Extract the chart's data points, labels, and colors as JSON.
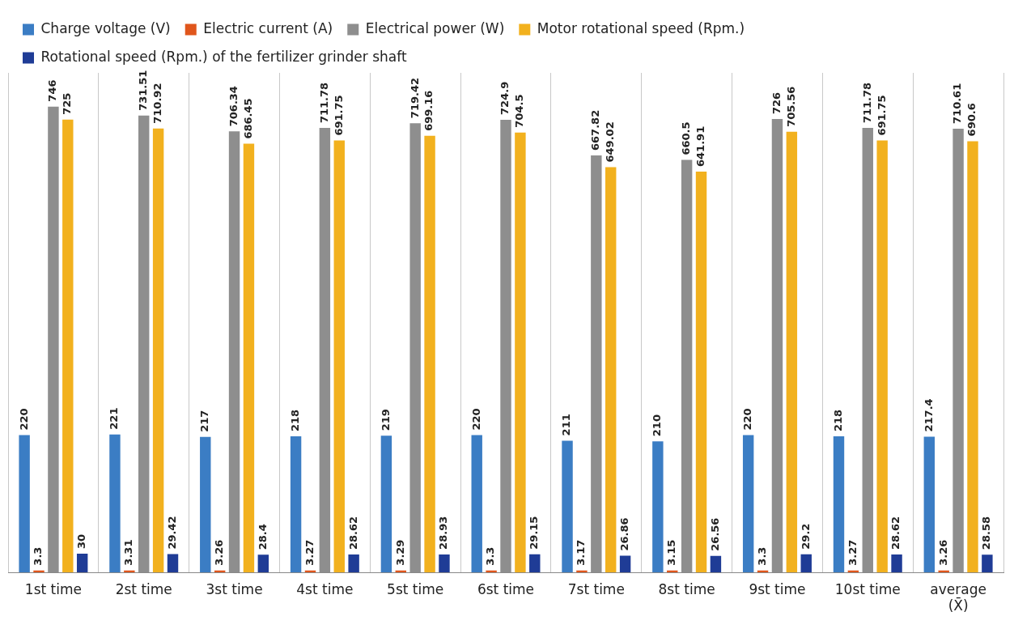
{
  "chart_data": {
    "type": "bar",
    "categories": [
      "1st time",
      "2st time",
      "3st time",
      "4st time",
      "5st time",
      "6st time",
      "7st time",
      "8st time",
      "9st time",
      "10st time",
      "average\n(X̄)"
    ],
    "series": [
      {
        "name": "Charge voltage (V)",
        "color": "#3b7dc4",
        "values": [
          220,
          221,
          217,
          218,
          219,
          220,
          211,
          210,
          220,
          218,
          217.4
        ]
      },
      {
        "name": "Electric current (A)",
        "color": "#e0561c",
        "values": [
          3.3,
          3.31,
          3.26,
          3.27,
          3.29,
          3.3,
          3.17,
          3.15,
          3.3,
          3.27,
          3.26
        ]
      },
      {
        "name": "Electrical power (W)",
        "color": "#8e8e8e",
        "values": [
          746,
          731.51,
          706.34,
          711.78,
          719.42,
          724.9,
          667.82,
          660.5,
          726,
          711.78,
          710.61
        ]
      },
      {
        "name": "Motor rotational speed (Rpm.)",
        "color": "#f2b11e",
        "values": [
          725,
          710.92,
          686.45,
          691.75,
          699.16,
          704.5,
          649.02,
          641.91,
          705.56,
          691.75,
          690.6
        ]
      },
      {
        "name": "Rotational speed (Rpm.) of the fertilizer grinder shaft",
        "color": "#1f3c96",
        "values": [
          30,
          29.42,
          28.4,
          28.62,
          28.93,
          29.15,
          26.86,
          26.56,
          29.2,
          28.62,
          28.58
        ]
      }
    ],
    "data_labels": true,
    "grid": "x",
    "legend": "top left"
  }
}
